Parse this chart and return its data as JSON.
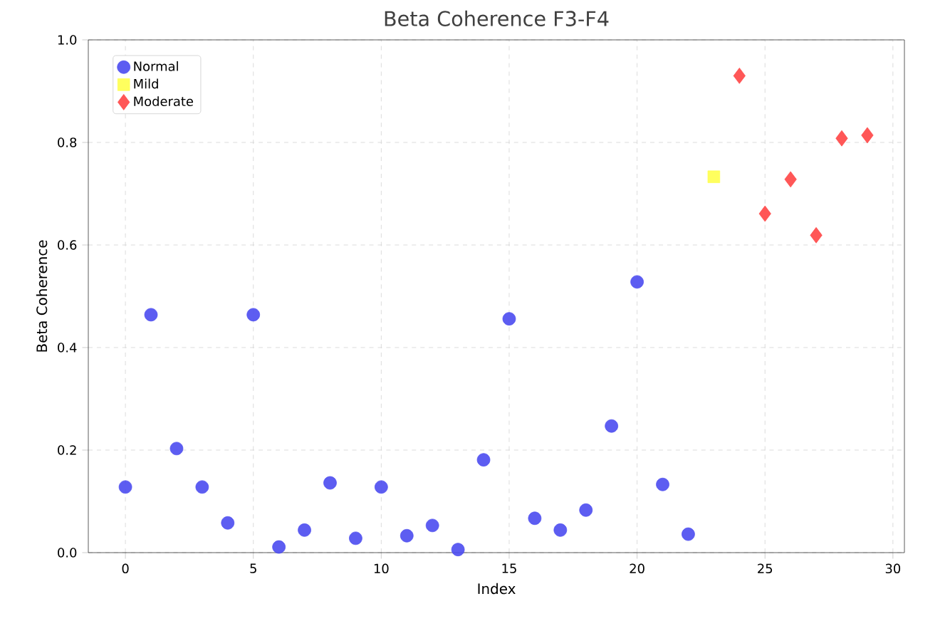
{
  "chart_data": {
    "type": "scatter",
    "title": "Beta Coherence F3-F4",
    "xlabel": "Index",
    "ylabel": "Beta Coherence",
    "xlim": [
      -1.45,
      30.45
    ],
    "ylim": [
      0,
      1.0
    ],
    "xticks": [
      0,
      5,
      10,
      15,
      20,
      25,
      30
    ],
    "yticks": [
      {
        "value": 0,
        "label": "0.0"
      },
      {
        "value": 0.2,
        "label": "0.2"
      },
      {
        "value": 0.4,
        "label": "0.4"
      },
      {
        "value": 0.6,
        "label": "0.6"
      },
      {
        "value": 0.8,
        "label": "0.8"
      },
      {
        "value": 1.0,
        "label": "1.0"
      }
    ],
    "grid": true,
    "legend": "top left",
    "series": [
      {
        "name": "Normal",
        "color": "#4b4bf0",
        "marker": "circle",
        "x": [
          0,
          1,
          2,
          3,
          4,
          5,
          6,
          7,
          8,
          9,
          10,
          11,
          12,
          13,
          14,
          15,
          16,
          17,
          18,
          19,
          20,
          21,
          22
        ],
        "values": [
          0.128,
          0.464,
          0.203,
          0.128,
          0.058,
          0.464,
          0.011,
          0.044,
          0.136,
          0.028,
          0.128,
          0.033,
          0.053,
          0.006,
          0.181,
          0.456,
          0.067,
          0.044,
          0.083,
          0.247,
          0.528,
          0.133,
          0.036
        ]
      },
      {
        "name": "Mild",
        "color": "#ffff4d",
        "marker": "square",
        "x": [
          23
        ],
        "values": [
          0.733
        ]
      },
      {
        "name": "Moderate",
        "color": "#ff4545",
        "marker": "diamond",
        "x": [
          24,
          25,
          26,
          27,
          28,
          29
        ],
        "values": [
          0.93,
          0.661,
          0.728,
          0.619,
          0.808,
          0.814
        ]
      }
    ]
  }
}
